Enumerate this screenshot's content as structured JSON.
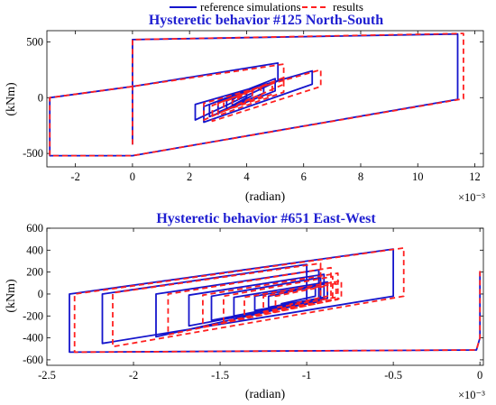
{
  "legend": {
    "items": [
      {
        "label": "reference simulations",
        "color": "#1515cc",
        "dash": "solid"
      },
      {
        "label": "results",
        "color": "#ff2020",
        "dash": "dashed"
      }
    ]
  },
  "chart_data": [
    {
      "type": "line",
      "title": "Hysteretic behavior #125 North-South",
      "xlabel": "(radian)",
      "ylabel": "(kNm)",
      "x_exponent_label": "×10⁻³",
      "xlim": [
        -3.0,
        12.3
      ],
      "ylim": [
        -620,
        600
      ],
      "xticks": [
        -2,
        0,
        2,
        4,
        6,
        8,
        10,
        12
      ],
      "xtick_labels": [
        "-2",
        "0",
        "2",
        "4",
        "6",
        "8",
        "10",
        "12"
      ],
      "yticks": [
        -500,
        0,
        500
      ],
      "ytick_labels": [
        "-500",
        "0",
        "500"
      ],
      "x_scale": 0.001,
      "series": [
        {
          "name": "reference simulations",
          "color": "#1515cc",
          "style": "solid",
          "x": [
            0,
            0,
            11.4,
            11.4,
            0,
            -2.9,
            -2.9,
            0,
            5.1,
            5.1,
            2.2,
            2.2,
            6.3,
            6.3,
            2.5,
            2.5,
            5.0,
            5.0,
            2.7,
            2.7,
            4.6,
            4.6,
            3.0,
            3.0,
            4.2,
            4.2,
            3.3,
            3.3,
            4.0,
            4.0,
            3.5,
            3.5,
            3.8
          ],
          "y": [
            -420,
            520,
            570,
            -15,
            -520,
            -520,
            0,
            100,
            310,
            150,
            -200,
            -60,
            240,
            120,
            -220,
            -80,
            170,
            60,
            -170,
            -60,
            120,
            40,
            -130,
            -40,
            90,
            20,
            -100,
            -30,
            60,
            0,
            -70,
            -20,
            30
          ]
        },
        {
          "name": "results",
          "color": "#ff2020",
          "style": "dashed",
          "x": [
            0,
            0,
            11.6,
            11.6,
            0,
            -2.9,
            -2.9,
            0,
            5.3,
            5.3,
            2.5,
            2.5,
            6.6,
            6.6,
            2.8,
            2.8,
            5.3,
            5.3,
            3.0,
            3.0,
            4.9,
            4.9,
            3.2,
            3.2,
            4.5,
            4.5,
            3.5,
            3.5,
            4.2,
            4.2,
            3.7,
            3.7,
            4.0
          ],
          "y": [
            -420,
            520,
            575,
            -10,
            -520,
            -520,
            0,
            100,
            300,
            120,
            -200,
            -50,
            250,
            100,
            -210,
            -70,
            180,
            50,
            -160,
            -50,
            130,
            30,
            -120,
            -40,
            100,
            10,
            -90,
            -30,
            70,
            0,
            -60,
            -10,
            40
          ]
        }
      ]
    },
    {
      "type": "line",
      "title": "Hysteretic behavior #651 East-West",
      "xlabel": "(radian)",
      "ylabel": "(kNm)",
      "x_exponent_label": "×10⁻³",
      "xlim": [
        -2.5,
        0.02
      ],
      "ylim": [
        -650,
        600
      ],
      "xticks": [
        -2.5,
        -2,
        -1.5,
        -1,
        -0.5,
        0
      ],
      "xtick_labels": [
        "-2.5",
        "-2",
        "-1.5",
        "-1",
        "-0.5",
        "0"
      ],
      "yticks": [
        -600,
        -400,
        -200,
        0,
        200,
        400,
        600
      ],
      "ytick_labels": [
        "-600",
        "-400",
        "-200",
        "0",
        "200",
        "400",
        "600"
      ],
      "x_scale": 0.001,
      "series": [
        {
          "name": "reference simulations",
          "color": "#1515cc",
          "style": "solid",
          "x": [
            0.0,
            0.0,
            -0.02,
            -2.37,
            -2.37,
            -0.5,
            -0.5,
            -2.18,
            -2.18,
            -1.0,
            -1.0,
            -1.87,
            -1.87,
            -0.93,
            -0.93,
            -1.68,
            -1.68,
            -0.9,
            -0.9,
            -1.55,
            -1.55,
            -0.92,
            -0.92,
            -1.42,
            -1.42,
            -0.88,
            -0.88,
            -1.3,
            -1.3,
            -0.9,
            -0.9,
            -1.22,
            -1.22,
            -0.95,
            -0.95,
            -1.15
          ],
          "y": [
            200,
            -400,
            -510,
            -530,
            0,
            410,
            -20,
            -450,
            0,
            270,
            -80,
            -390,
            0,
            220,
            -70,
            -290,
            -10,
            180,
            -50,
            -240,
            -20,
            150,
            -50,
            -200,
            -30,
            110,
            -40,
            -150,
            -20,
            90,
            -30,
            -120,
            -20,
            70,
            -20,
            -90
          ]
        },
        {
          "name": "results",
          "color": "#ff2020",
          "style": "dashed",
          "x": [
            0.0,
            0.0,
            -0.02,
            -2.34,
            -2.34,
            -0.44,
            -0.44,
            -2.12,
            -2.12,
            -0.92,
            -0.92,
            -1.8,
            -1.8,
            -0.86,
            -0.86,
            -1.6,
            -1.6,
            -0.82,
            -0.82,
            -1.48,
            -1.48,
            -0.85,
            -0.85,
            -1.36,
            -1.36,
            -0.8,
            -0.8,
            -1.25,
            -1.25,
            -0.83,
            -0.83,
            -1.18,
            -1.18,
            -0.88,
            -0.88,
            -1.1
          ],
          "y": [
            210,
            -400,
            -510,
            -530,
            0,
            420,
            -20,
            -480,
            10,
            280,
            -80,
            -370,
            0,
            240,
            -60,
            -300,
            -10,
            190,
            -50,
            -250,
            -20,
            160,
            -50,
            -210,
            -30,
            120,
            -40,
            -160,
            -20,
            95,
            -30,
            -125,
            -20,
            75,
            -20,
            -95
          ]
        }
      ]
    }
  ]
}
